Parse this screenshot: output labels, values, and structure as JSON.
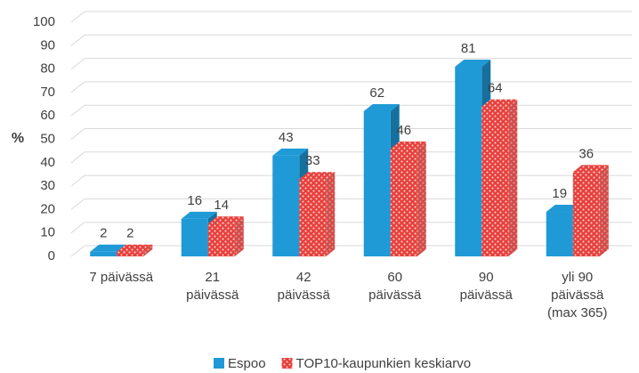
{
  "chart_data": {
    "type": "bar3d",
    "y_label": "%",
    "categories": [
      "7 päivässä",
      "21\npäivässä",
      "42\npäivässä",
      "60\npäivässä",
      "90\npäivässä",
      "yli 90\npäivässä\n(max 365)"
    ],
    "series": [
      {
        "name": "Espoo",
        "color": "#1f9ad6",
        "values": [
          2,
          16,
          43,
          62,
          81,
          19
        ]
      },
      {
        "name": "TOP10-kaupunkien keskiarvo",
        "color": "#e8403c",
        "values": [
          2,
          14,
          33,
          46,
          64,
          36
        ]
      }
    ],
    "ylim": [
      0,
      100
    ],
    "yticks": [
      0,
      10,
      20,
      30,
      40,
      50,
      60,
      70,
      80,
      90,
      100
    ],
    "grid": true
  }
}
